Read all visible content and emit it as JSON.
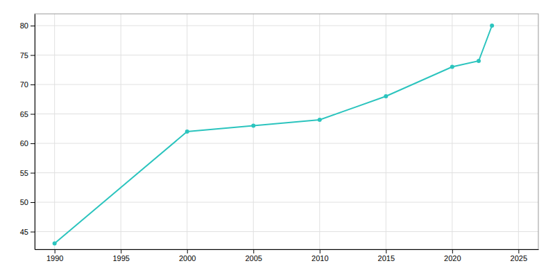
{
  "chart_data": {
    "type": "line",
    "x": [
      1990,
      2000,
      2005,
      2010,
      2015,
      2020,
      2022,
      2023
    ],
    "values": [
      43,
      62,
      63,
      64,
      68,
      73,
      74,
      80
    ],
    "color": "#2bc4be",
    "marker": "circle",
    "xlim": [
      1988.5,
      2026.5
    ],
    "ylim": [
      42,
      82
    ],
    "xticks": [
      1990,
      1995,
      2000,
      2005,
      2010,
      2015,
      2020,
      2025
    ],
    "yticks": [
      45,
      50,
      55,
      60,
      65,
      70,
      75,
      80
    ],
    "grid": true
  }
}
